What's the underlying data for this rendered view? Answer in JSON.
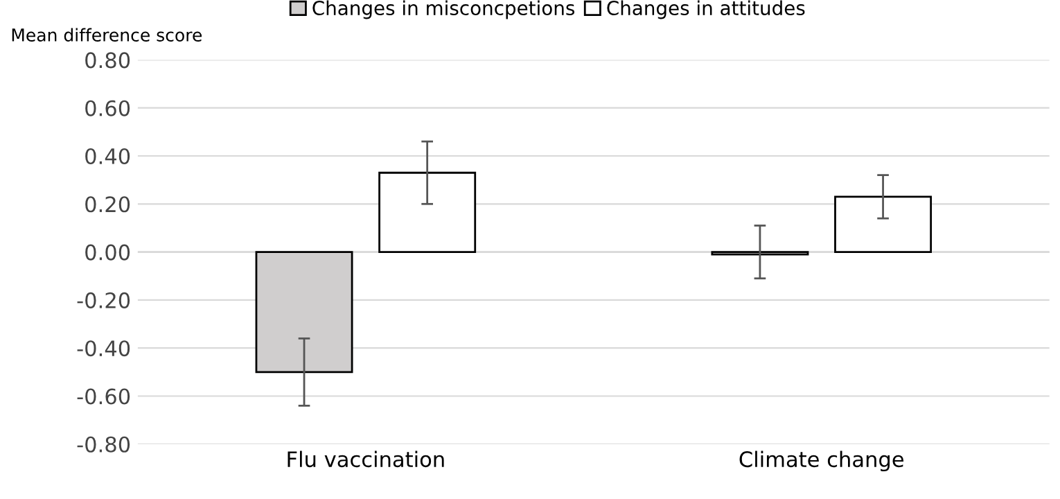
{
  "chart_data": {
    "type": "bar",
    "ylabel": "Mean difference score",
    "categories": [
      "Flu vaccination",
      "Climate change"
    ],
    "series": [
      {
        "name": "Changes in misconcpetions",
        "color": "#d0cece",
        "values": [
          -0.5,
          -0.01
        ],
        "errors": [
          [
            -0.64,
            -0.36
          ],
          [
            -0.11,
            0.11
          ]
        ]
      },
      {
        "name": "Changes in attitudes",
        "color": "#ffffff",
        "values": [
          0.33,
          0.23
        ],
        "errors": [
          [
            0.2,
            0.46
          ],
          [
            0.14,
            0.32
          ]
        ]
      }
    ],
    "ylim": [
      -0.8,
      0.8
    ],
    "yticks": [
      {
        "value": -0.8,
        "label": "-0.80"
      },
      {
        "value": -0.6,
        "label": "-0.60"
      },
      {
        "value": -0.4,
        "label": "-0.40"
      },
      {
        "value": -0.2,
        "label": "-0.20"
      },
      {
        "value": 0,
        "label": "0.00"
      },
      {
        "value": 0.2,
        "label": "0.20"
      },
      {
        "value": 0.4,
        "label": "0.40"
      },
      {
        "value": 0.6,
        "label": "0.60"
      },
      {
        "value": 0.8,
        "label": "0.80"
      }
    ],
    "grid": "y",
    "legend": "top"
  }
}
